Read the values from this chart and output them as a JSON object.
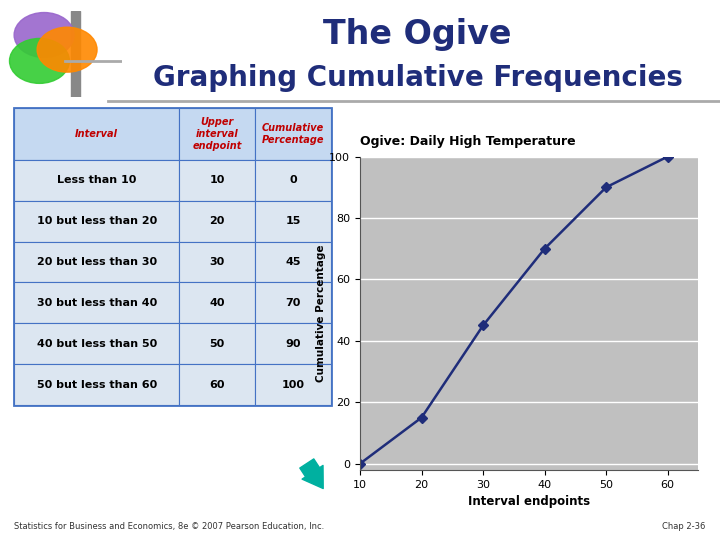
{
  "title_line1": "The Ogive",
  "title_line2": "Graphing Cumulative Frequencies",
  "title_color": "#1f2d7a",
  "title_fontsize1": 24,
  "title_fontsize2": 20,
  "table_intervals": [
    "Interval",
    "Less than 10",
    "10 but less than 20",
    "20 but less than 30",
    "30 but less than 40",
    "40 but less than 50",
    "50 but less than 60"
  ],
  "table_upper": [
    "Upper\ninterval\nendpoint",
    "10",
    "20",
    "30",
    "40",
    "50",
    "60"
  ],
  "table_cumperc": [
    "Cumulative\nPercentage",
    "0",
    "15",
    "45",
    "70",
    "90",
    "100"
  ],
  "header_bg": "#c5d9f1",
  "table_bg": "#dce6f1",
  "header_text_color": "#c00000",
  "table_text_color": "#000000",
  "table_border_color": "#4472c4",
  "x_data": [
    10,
    20,
    30,
    40,
    50,
    60
  ],
  "y_data": [
    0,
    15,
    45,
    70,
    90,
    100
  ],
  "plot_title": "Ogive: Daily High Temperature",
  "plot_xlabel": "Interval endpoints",
  "plot_ylabel": "Cumulative Percentage",
  "plot_bg": "#c0c0c0",
  "line_color": "#1f2d7a",
  "marker_color": "#1f2d7a",
  "ylim": [
    0,
    100
  ],
  "yticks": [
    0,
    20,
    40,
    60,
    80,
    100
  ],
  "xticks": [
    10,
    20,
    30,
    40,
    50,
    60
  ],
  "footer_text": "Statistics for Business and Economics, 8e © 2007 Pearson Education, Inc.",
  "footer_right": "Chap 2-36",
  "bg_color": "#ffffff",
  "arrow_color": "#00b0a0",
  "logo_purple": "#9966cc",
  "logo_green": "#33cc33",
  "logo_orange": "#ff8800",
  "logo_bar": "#888888",
  "separator_color": "#aaaaaa"
}
